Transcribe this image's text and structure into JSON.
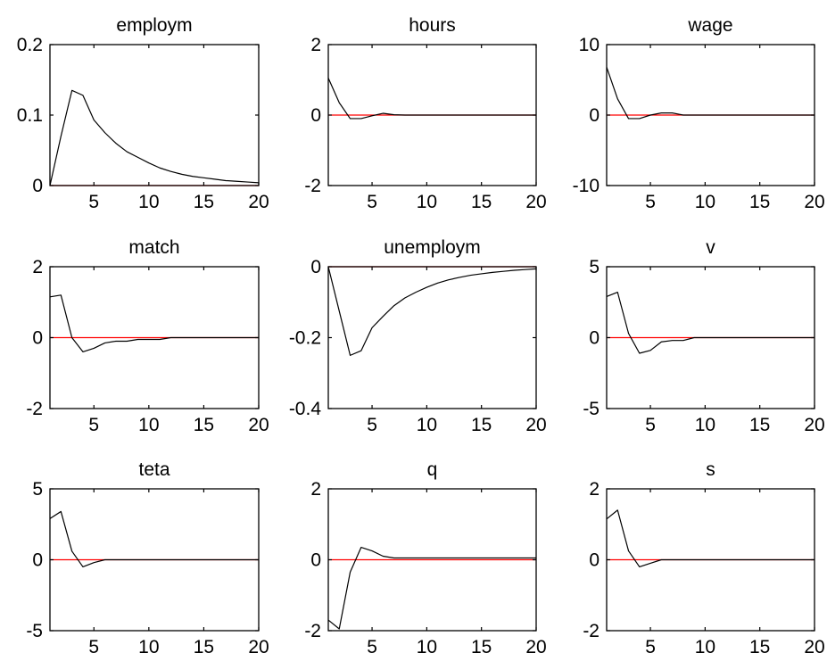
{
  "figure": {
    "background": "#ffffff",
    "line_color": "#000000",
    "zero_line_color": "#ff0000"
  },
  "chart_data": [
    {
      "type": "line",
      "title": "employm",
      "xlim": [
        1,
        20
      ],
      "ylim": [
        0,
        0.2
      ],
      "xticks": [
        "5",
        "10",
        "15",
        "20"
      ],
      "yticks": [
        "0",
        "0.1",
        "0.2"
      ],
      "zero_line": 0,
      "x": [
        1,
        2,
        3,
        4,
        5,
        6,
        7,
        8,
        9,
        10,
        11,
        12,
        13,
        14,
        15,
        16,
        17,
        18,
        19,
        20
      ],
      "values": [
        0,
        0.07,
        0.135,
        0.128,
        0.093,
        0.075,
        0.06,
        0.048,
        0.04,
        0.032,
        0.025,
        0.02,
        0.016,
        0.013,
        0.011,
        0.009,
        0.007,
        0.006,
        0.005,
        0.004
      ]
    },
    {
      "type": "line",
      "title": "hours",
      "xlim": [
        1,
        20
      ],
      "ylim": [
        -2,
        2
      ],
      "xticks": [
        "5",
        "10",
        "15",
        "20"
      ],
      "yticks": [
        "-2",
        "0",
        "2"
      ],
      "zero_line": 0,
      "x": [
        1,
        2,
        3,
        4,
        5,
        6,
        7,
        8,
        9,
        10,
        11,
        12,
        13,
        14,
        15,
        16,
        17,
        18,
        19,
        20
      ],
      "values": [
        1.05,
        0.35,
        -0.1,
        -0.1,
        -0.02,
        0.05,
        0.01,
        0,
        0,
        0,
        0,
        0,
        0,
        0,
        0,
        0,
        0,
        0,
        0,
        0
      ]
    },
    {
      "type": "line",
      "title": "wage",
      "xlim": [
        1,
        20
      ],
      "ylim": [
        -10,
        10
      ],
      "xticks": [
        "5",
        "10",
        "15",
        "20"
      ],
      "yticks": [
        "-10",
        "0",
        "10"
      ],
      "zero_line": 0,
      "x": [
        1,
        2,
        3,
        4,
        5,
        6,
        7,
        8,
        9,
        10,
        11,
        12,
        13,
        14,
        15,
        16,
        17,
        18,
        19,
        20
      ],
      "values": [
        6.8,
        2.3,
        -0.5,
        -0.5,
        0,
        0.3,
        0.3,
        0,
        0,
        0,
        0,
        0,
        0,
        0,
        0,
        0,
        0,
        0,
        0,
        0
      ]
    },
    {
      "type": "line",
      "title": "match",
      "xlim": [
        1,
        20
      ],
      "ylim": [
        -2,
        2
      ],
      "xticks": [
        "5",
        "10",
        "15",
        "20"
      ],
      "yticks": [
        "-2",
        "0",
        "2"
      ],
      "zero_line": 0,
      "x": [
        1,
        2,
        3,
        4,
        5,
        6,
        7,
        8,
        9,
        10,
        11,
        12,
        13,
        14,
        15,
        16,
        17,
        18,
        19,
        20
      ],
      "values": [
        1.15,
        1.2,
        0,
        -0.4,
        -0.3,
        -0.15,
        -0.1,
        -0.1,
        -0.05,
        -0.05,
        -0.05,
        0,
        0,
        0,
        0,
        0,
        0,
        0,
        0,
        0
      ]
    },
    {
      "type": "line",
      "title": "unemploym",
      "xlim": [
        1,
        20
      ],
      "ylim": [
        -0.4,
        0
      ],
      "xticks": [
        "5",
        "10",
        "15",
        "20"
      ],
      "yticks": [
        "-0.4",
        "-0.2",
        "0"
      ],
      "zero_line": 0,
      "x": [
        1,
        2,
        3,
        4,
        5,
        6,
        7,
        8,
        9,
        10,
        11,
        12,
        13,
        14,
        15,
        16,
        17,
        18,
        19,
        20
      ],
      "values": [
        0,
        -0.125,
        -0.25,
        -0.237,
        -0.172,
        -0.14,
        -0.11,
        -0.088,
        -0.072,
        -0.058,
        -0.046,
        -0.037,
        -0.03,
        -0.024,
        -0.02,
        -0.016,
        -0.013,
        -0.01,
        -0.008,
        -0.006
      ]
    },
    {
      "type": "line",
      "title": "v",
      "xlim": [
        1,
        20
      ],
      "ylim": [
        -5,
        5
      ],
      "xticks": [
        "5",
        "10",
        "15",
        "20"
      ],
      "yticks": [
        "-5",
        "0",
        "5"
      ],
      "zero_line": 0,
      "x": [
        1,
        2,
        3,
        4,
        5,
        6,
        7,
        8,
        9,
        10,
        11,
        12,
        13,
        14,
        15,
        16,
        17,
        18,
        19,
        20
      ],
      "values": [
        2.9,
        3.2,
        0.3,
        -1.1,
        -0.9,
        -0.3,
        -0.2,
        -0.2,
        0,
        0,
        0,
        0,
        0,
        0,
        0,
        0,
        0,
        0,
        0,
        0
      ]
    },
    {
      "type": "line",
      "title": "teta",
      "xlim": [
        1,
        20
      ],
      "ylim": [
        -5,
        5
      ],
      "xticks": [
        "5",
        "10",
        "15",
        "20"
      ],
      "yticks": [
        "-5",
        "0",
        "5"
      ],
      "zero_line": 0,
      "x": [
        1,
        2,
        3,
        4,
        5,
        6,
        7,
        8,
        9,
        10,
        11,
        12,
        13,
        14,
        15,
        16,
        17,
        18,
        19,
        20
      ],
      "values": [
        2.9,
        3.4,
        0.6,
        -0.5,
        -0.2,
        0,
        0,
        0,
        0,
        0,
        0,
        0,
        0,
        0,
        0,
        0,
        0,
        0,
        0,
        0
      ]
    },
    {
      "type": "line",
      "title": "q",
      "xlim": [
        1,
        20
      ],
      "ylim": [
        -2,
        2
      ],
      "xticks": [
        "5",
        "10",
        "15",
        "20"
      ],
      "yticks": [
        "-2",
        "0",
        "2"
      ],
      "zero_line": 0,
      "x": [
        1,
        2,
        3,
        4,
        5,
        6,
        7,
        8,
        9,
        10,
        11,
        12,
        13,
        14,
        15,
        16,
        17,
        18,
        19,
        20
      ],
      "values": [
        -1.7,
        -1.95,
        -0.35,
        0.35,
        0.25,
        0.1,
        0.05,
        0.05,
        0.05,
        0.05,
        0.05,
        0.05,
        0.05,
        0.05,
        0.05,
        0.05,
        0.05,
        0.05,
        0.05,
        0.05
      ]
    },
    {
      "type": "line",
      "title": "s",
      "xlim": [
        1,
        20
      ],
      "ylim": [
        -2,
        2
      ],
      "xticks": [
        "5",
        "10",
        "15",
        "20"
      ],
      "yticks": [
        "-2",
        "0",
        "2"
      ],
      "zero_line": 0,
      "x": [
        1,
        2,
        3,
        4,
        5,
        6,
        7,
        8,
        9,
        10,
        11,
        12,
        13,
        14,
        15,
        16,
        17,
        18,
        19,
        20
      ],
      "values": [
        1.15,
        1.4,
        0.25,
        -0.2,
        -0.1,
        0,
        0,
        0,
        0,
        0,
        0,
        0,
        0,
        0,
        0,
        0,
        0,
        0,
        0,
        0
      ]
    }
  ]
}
